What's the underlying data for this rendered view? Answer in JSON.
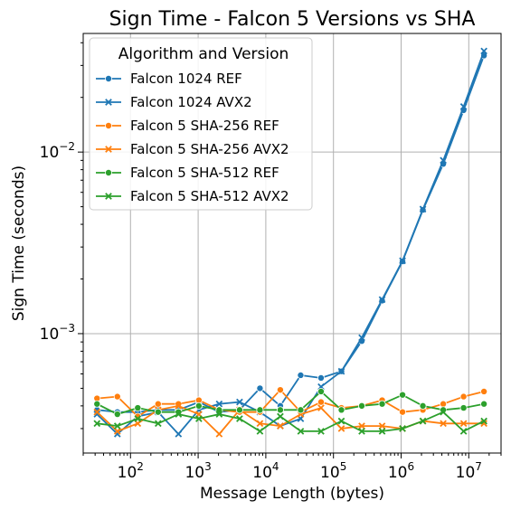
{
  "chart_data": {
    "type": "line",
    "title": "Sign Time - Falcon 5 Versions vs SHA",
    "xlabel": "Message Length (bytes)",
    "ylabel": "Sign Time (seconds)",
    "xscale": "log",
    "yscale": "log",
    "xlim": [
      20,
      30000000
    ],
    "ylim": [
      0.00022,
      0.045
    ],
    "grid": true,
    "x_ticks": [
      {
        "value": 100,
        "base": "10",
        "exp": "2"
      },
      {
        "value": 1000,
        "base": "10",
        "exp": "3"
      },
      {
        "value": 10000,
        "base": "10",
        "exp": "4"
      },
      {
        "value": 100000,
        "base": "10",
        "exp": "5"
      },
      {
        "value": 1000000,
        "base": "10",
        "exp": "6"
      },
      {
        "value": 10000000,
        "base": "10",
        "exp": "7"
      }
    ],
    "y_ticks": [
      {
        "value": 0.001,
        "base": "10",
        "exp": "−3"
      },
      {
        "value": 0.01,
        "base": "10",
        "exp": "−2"
      }
    ],
    "legend": {
      "title": "Algorithm and Version",
      "placement": "top-left"
    },
    "x": [
      32,
      64,
      128,
      256,
      512,
      1024,
      2048,
      4096,
      8192,
      16384,
      32768,
      65536,
      131072,
      262144,
      524288,
      1048576,
      2097152,
      4194304,
      8388608,
      16777216
    ],
    "series": [
      {
        "name": "Falcon 1024 REF",
        "color": "#1f77b4",
        "marker": "circle",
        "values": [
          0.00038,
          0.00037,
          0.00037,
          0.00038,
          0.00038,
          0.00042,
          0.00037,
          0.00038,
          0.0005,
          0.0004,
          0.00059,
          0.00057,
          0.00062,
          0.00091,
          0.00152,
          0.0025,
          0.0048,
          0.0086,
          0.017,
          0.034
        ]
      },
      {
        "name": "Falcon 1024 AVX2",
        "color": "#1f77b4",
        "marker": "x",
        "values": [
          0.00036,
          0.00028,
          0.00035,
          0.00037,
          0.00028,
          0.00038,
          0.00041,
          0.00042,
          0.00037,
          0.00031,
          0.00034,
          0.00051,
          0.00062,
          0.00095,
          0.00154,
          0.00252,
          0.00485,
          0.009,
          0.0178,
          0.036
        ]
      },
      {
        "name": "Falcon 5 SHA-256 REF",
        "color": "#ff7f0e",
        "marker": "circle",
        "values": [
          0.00044,
          0.00045,
          0.00035,
          0.00041,
          0.00041,
          0.00043,
          0.00038,
          0.00037,
          0.00037,
          0.00049,
          0.00037,
          0.00042,
          0.00039,
          0.0004,
          0.00043,
          0.00037,
          0.00038,
          0.00041,
          0.00045,
          0.00048
        ]
      },
      {
        "name": "Falcon 5 SHA-256 AVX2",
        "color": "#ff7f0e",
        "marker": "x",
        "values": [
          0.00037,
          0.00029,
          0.00032,
          0.00038,
          0.0004,
          0.00036,
          0.00028,
          0.00038,
          0.00032,
          0.00031,
          0.00036,
          0.00039,
          0.0003,
          0.00031,
          0.00031,
          0.0003,
          0.00033,
          0.00032,
          0.00032,
          0.00032
        ]
      },
      {
        "name": "Falcon 5 SHA-512 REF",
        "color": "#2ca02c",
        "marker": "circle",
        "values": [
          0.00041,
          0.00036,
          0.00039,
          0.00037,
          0.00037,
          0.0004,
          0.00038,
          0.00038,
          0.00038,
          0.00038,
          0.00038,
          0.00048,
          0.00038,
          0.0004,
          0.00041,
          0.00046,
          0.0004,
          0.00038,
          0.00039,
          0.00041
        ]
      },
      {
        "name": "Falcon 5 SHA-512 AVX2",
        "color": "#2ca02c",
        "marker": "x",
        "values": [
          0.00032,
          0.00031,
          0.00034,
          0.00032,
          0.00036,
          0.00034,
          0.00036,
          0.00034,
          0.00029,
          0.00035,
          0.00029,
          0.00029,
          0.00033,
          0.00029,
          0.00029,
          0.0003,
          0.00033,
          0.00037,
          0.00029,
          0.00033
        ]
      }
    ]
  }
}
